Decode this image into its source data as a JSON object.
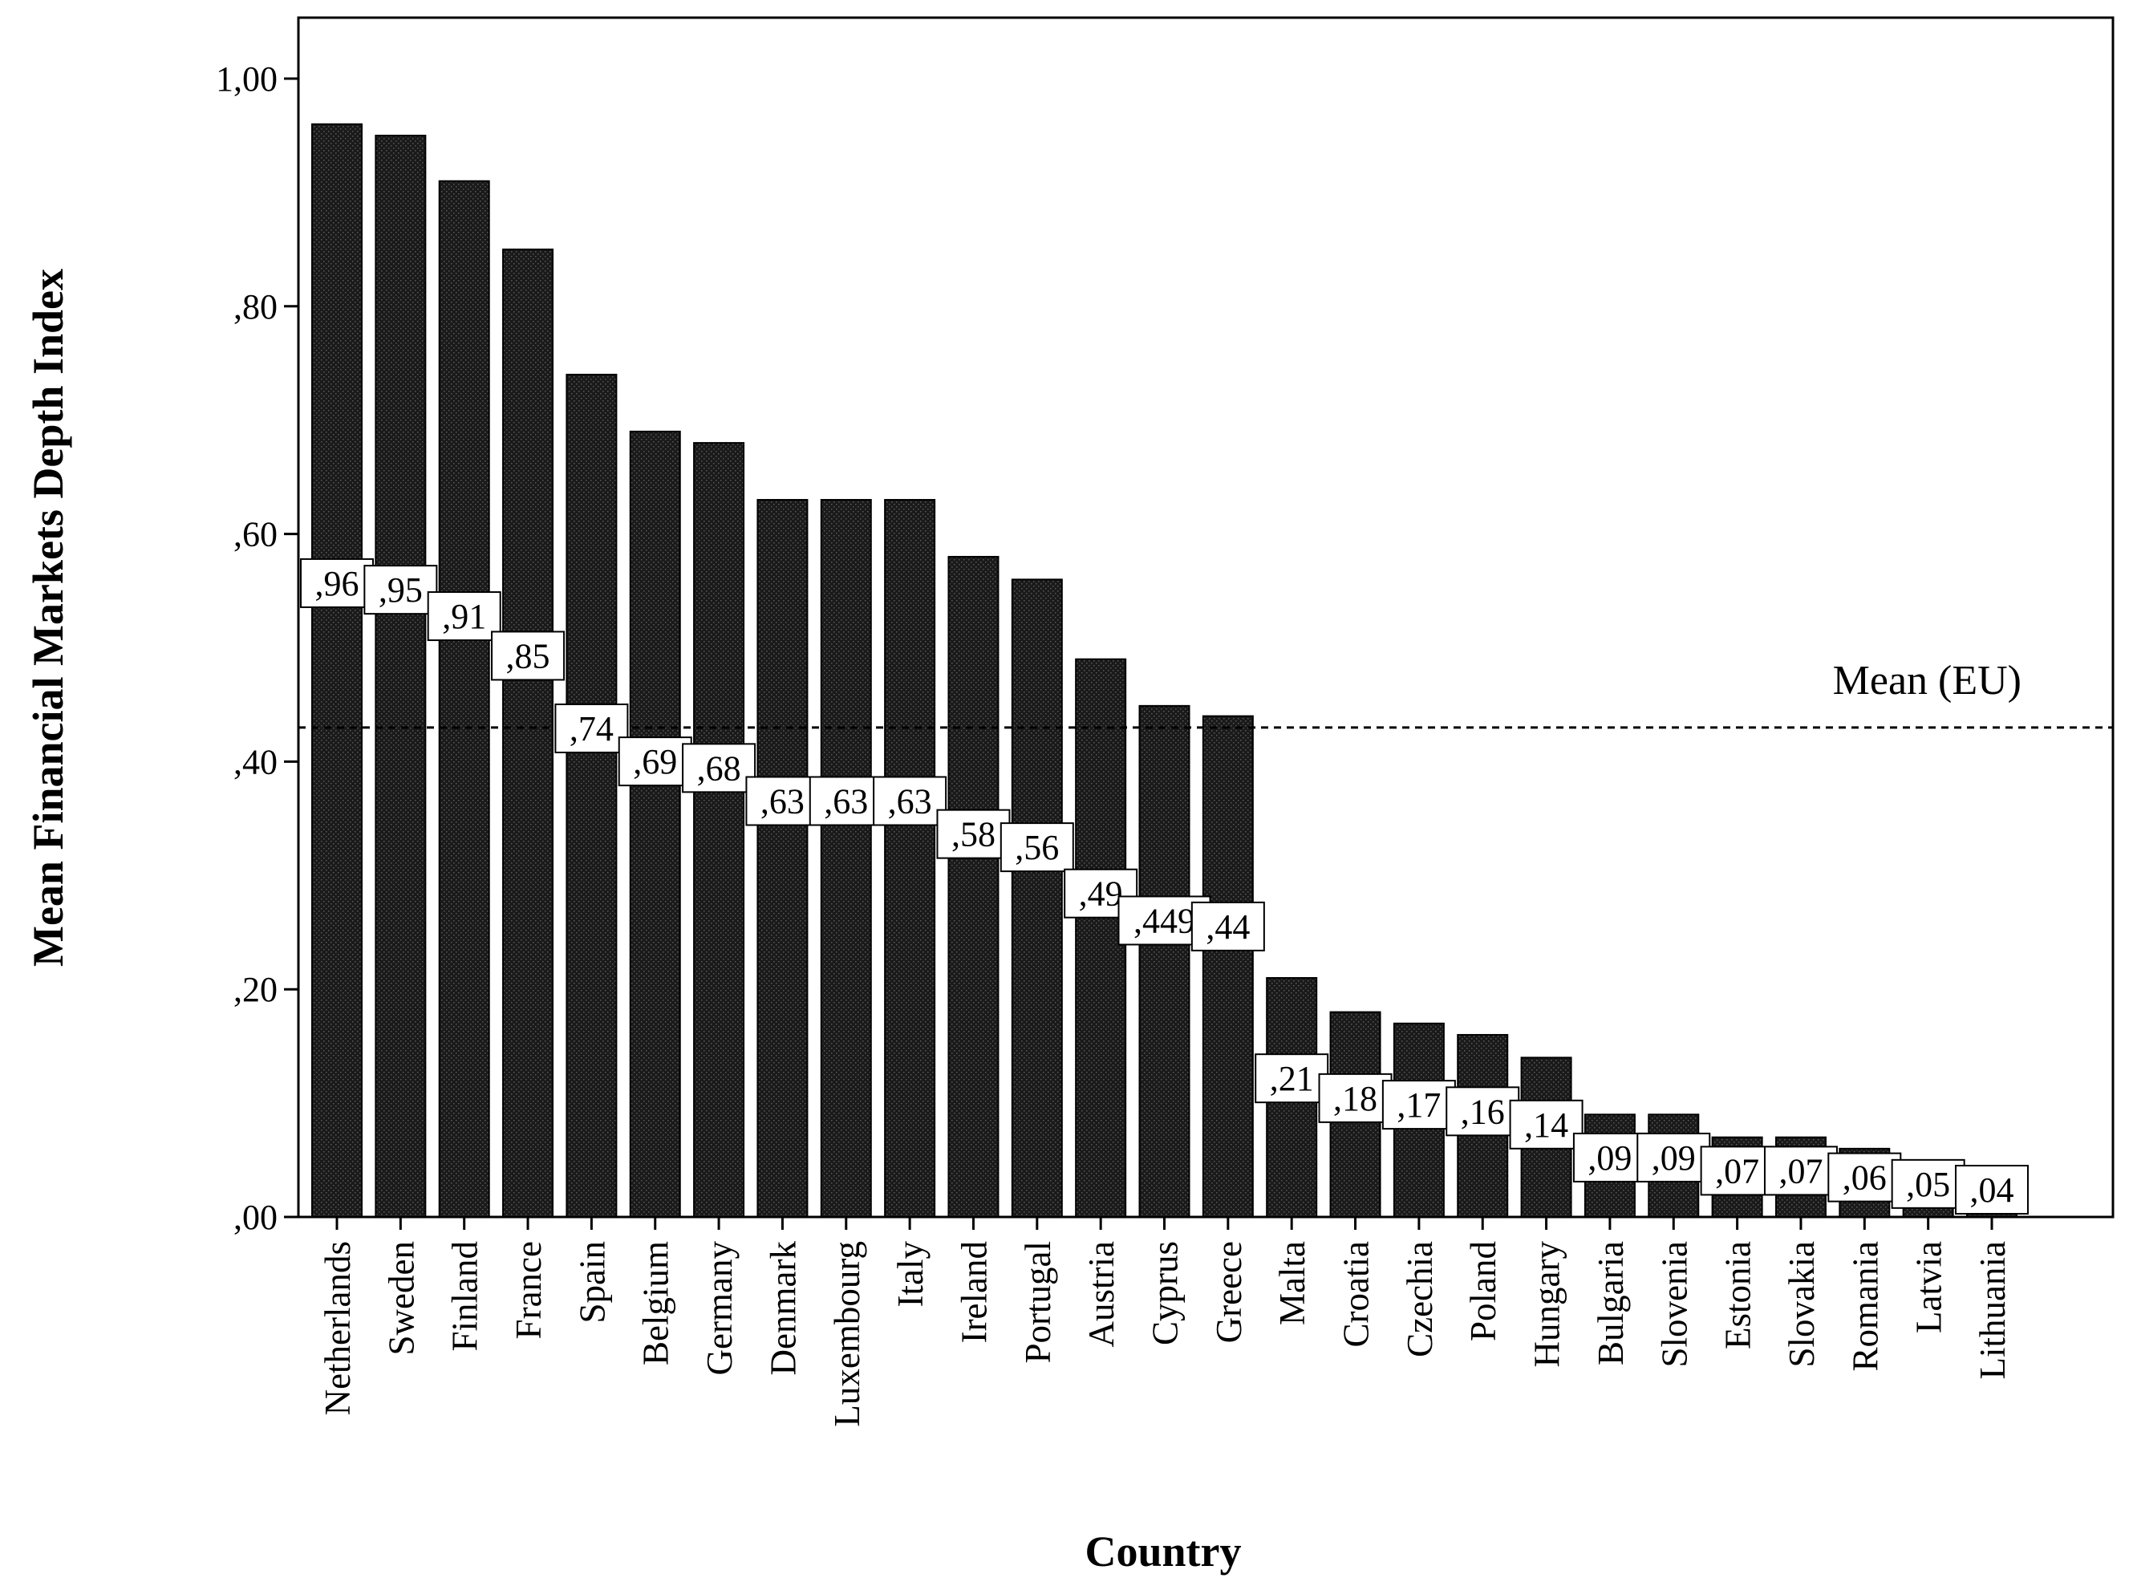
{
  "chart_data": {
    "type": "bar",
    "title": "",
    "xlabel": "Country",
    "ylabel": "Mean Financial Markets Depth Index",
    "ylim": [
      0,
      1
    ],
    "yticks": [
      0,
      0.2,
      0.4,
      0.6,
      0.8,
      1.0
    ],
    "ytick_labels": [
      ",00",
      ",20",
      ",40",
      ",60",
      ",80",
      "1,00"
    ],
    "categories": [
      "Netherlands",
      "Sweden",
      "Finland",
      "France",
      "Spain",
      "Belgium",
      "Germany",
      "Denmark",
      "Luxembourg",
      "Italy",
      "Ireland",
      "Portugal",
      "Austria",
      "Cyprus",
      "Greece",
      "Malta",
      "Croatia",
      "Czechia",
      "Poland",
      "Hungary",
      "Bulgaria",
      "Slovenia",
      "Estonia",
      "Slovakia",
      "Romania",
      "Latvia",
      "Lithuania"
    ],
    "values": [
      0.96,
      0.95,
      0.91,
      0.85,
      0.74,
      0.69,
      0.68,
      0.63,
      0.63,
      0.63,
      0.58,
      0.56,
      0.49,
      0.449,
      0.44,
      0.21,
      0.18,
      0.17,
      0.16,
      0.14,
      0.09,
      0.09,
      0.07,
      0.07,
      0.06,
      0.05,
      0.04
    ],
    "value_labels": [
      ",96",
      ",95",
      ",91",
      ",85",
      ",74",
      ",69",
      ",68",
      ",63",
      ",63",
      ",63",
      ",58",
      ",56",
      ",49",
      ",449",
      ",44",
      ",21",
      ",18",
      ",17",
      ",16",
      ",14",
      ",09",
      ",09",
      ",07",
      ",07",
      ",06",
      ",05",
      ",04"
    ],
    "reference_line": {
      "label": "Mean (EU)",
      "value": 0.43,
      "style": "dashed"
    },
    "bar_color": "#1a1a1a",
    "grid": false,
    "legend": "none"
  }
}
